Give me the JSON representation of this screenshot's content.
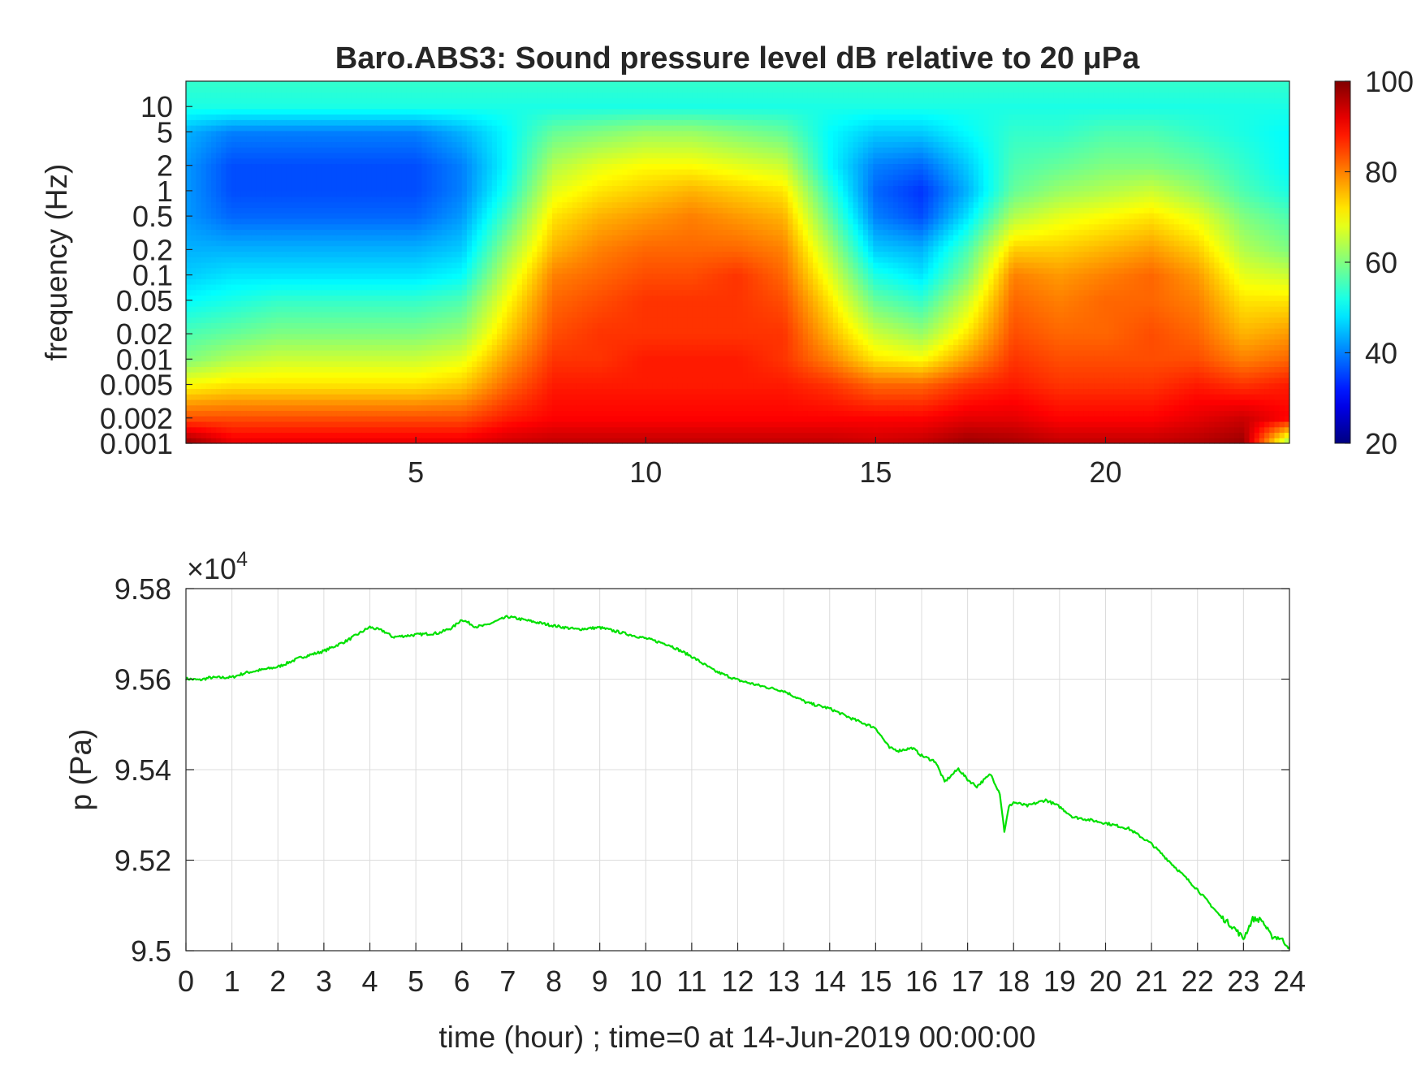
{
  "chart_data": [
    {
      "type": "heatmap",
      "title": "Baro.ABS3: Sound pressure level dB relative to 20 μPa",
      "xlabel": "",
      "ylabel": "frequency (Hz)",
      "x_scale": "linear",
      "y_scale": "log",
      "xlim": [
        0,
        24
      ],
      "ylim": [
        0.001,
        20
      ],
      "x_ticks": [
        5,
        10,
        15,
        20
      ],
      "y_ticks": [
        {
          "value": 10,
          "label": "10"
        },
        {
          "value": 5,
          "label": "5"
        },
        {
          "value": 2,
          "label": "2"
        },
        {
          "value": 1,
          "label": "1"
        },
        {
          "value": 0.5,
          "label": "0.5"
        },
        {
          "value": 0.2,
          "label": "0.2"
        },
        {
          "value": 0.1,
          "label": "0.1"
        },
        {
          "value": 0.05,
          "label": "0.05"
        },
        {
          "value": 0.02,
          "label": "0.02"
        },
        {
          "value": 0.01,
          "label": "0.01"
        },
        {
          "value": 0.005,
          "label": "0.005"
        },
        {
          "value": 0.002,
          "label": "0.002"
        },
        {
          "value": 0.001,
          "label": "0.001"
        }
      ],
      "colormap": "jet",
      "clim": [
        20,
        100
      ],
      "colorbar_ticks": [
        20,
        40,
        60,
        80,
        100
      ],
      "time_hours": [
        0,
        1,
        2,
        3,
        4,
        5,
        6,
        7,
        8,
        9,
        10,
        11,
        12,
        13,
        14,
        15,
        16,
        17,
        18,
        19,
        20,
        21,
        22,
        23,
        24
      ],
      "frequency_hz": [
        0.001,
        0.002,
        0.005,
        0.01,
        0.02,
        0.05,
        0.1,
        0.2,
        0.5,
        1,
        2,
        5,
        10,
        20
      ],
      "spl_db": [
        [
          99,
          84,
          70,
          60,
          56,
          50,
          46,
          44,
          42,
          42,
          42,
          44,
          52,
          54
        ],
        [
          92,
          84,
          72,
          64,
          58,
          52,
          48,
          44,
          38,
          36,
          36,
          40,
          52,
          54
        ],
        [
          92,
          84,
          72,
          66,
          60,
          54,
          48,
          44,
          38,
          36,
          36,
          40,
          52,
          54
        ],
        [
          92,
          84,
          72,
          66,
          60,
          54,
          48,
          44,
          38,
          36,
          36,
          40,
          52,
          54
        ],
        [
          92,
          84,
          72,
          66,
          60,
          54,
          48,
          44,
          38,
          36,
          36,
          40,
          52,
          54
        ],
        [
          92,
          84,
          72,
          66,
          60,
          54,
          48,
          44,
          38,
          36,
          36,
          40,
          52,
          54
        ],
        [
          92,
          84,
          74,
          68,
          62,
          56,
          50,
          46,
          42,
          40,
          40,
          44,
          52,
          54
        ],
        [
          94,
          88,
          82,
          78,
          74,
          70,
          66,
          62,
          56,
          52,
          50,
          50,
          52,
          54
        ],
        [
          95,
          90,
          88,
          86,
          84,
          82,
          80,
          76,
          72,
          68,
          64,
          58,
          52,
          54
        ],
        [
          95,
          90,
          88,
          86,
          86,
          84,
          82,
          80,
          76,
          72,
          68,
          60,
          52,
          54
        ],
        [
          95,
          90,
          88,
          88,
          86,
          86,
          84,
          82,
          78,
          74,
          70,
          62,
          52,
          54
        ],
        [
          95,
          90,
          88,
          88,
          86,
          86,
          84,
          82,
          80,
          76,
          70,
          62,
          52,
          54
        ],
        [
          95,
          90,
          88,
          88,
          86,
          86,
          86,
          82,
          78,
          74,
          68,
          60,
          52,
          54
        ],
        [
          95,
          90,
          88,
          86,
          86,
          84,
          82,
          80,
          76,
          72,
          66,
          58,
          52,
          54
        ],
        [
          95,
          90,
          86,
          80,
          76,
          72,
          68,
          64,
          58,
          54,
          50,
          50,
          52,
          54
        ],
        [
          94,
          90,
          82,
          72,
          66,
          58,
          52,
          46,
          40,
          38,
          40,
          46,
          52,
          54
        ],
        [
          95,
          90,
          82,
          70,
          62,
          54,
          48,
          44,
          36,
          34,
          38,
          46,
          52,
          54
        ],
        [
          98,
          92,
          86,
          78,
          72,
          66,
          60,
          56,
          48,
          44,
          46,
          50,
          52,
          54
        ],
        [
          97,
          92,
          88,
          86,
          84,
          82,
          80,
          74,
          64,
          58,
          56,
          54,
          52,
          54
        ],
        [
          95,
          90,
          86,
          84,
          82,
          80,
          78,
          74,
          68,
          62,
          58,
          54,
          52,
          54
        ],
        [
          95,
          90,
          86,
          84,
          82,
          82,
          80,
          76,
          70,
          64,
          60,
          56,
          52,
          54
        ],
        [
          95,
          90,
          86,
          84,
          84,
          82,
          82,
          78,
          72,
          66,
          60,
          56,
          52,
          54
        ],
        [
          96,
          92,
          88,
          84,
          82,
          80,
          78,
          74,
          68,
          62,
          58,
          54,
          52,
          54
        ],
        [
          98,
          94,
          86,
          80,
          76,
          72,
          68,
          64,
          60,
          56,
          54,
          52,
          52,
          54
        ],
        [
          60,
          90,
          88,
          82,
          78,
          72,
          66,
          60,
          56,
          52,
          50,
          50,
          52,
          54
        ]
      ]
    },
    {
      "type": "line",
      "title": "",
      "xlabel": "time (hour) ; time=0 at 14-Jun-2019 00:00:00",
      "ylabel": "p (Pa)",
      "xlim": [
        0,
        24
      ],
      "ylim": [
        9.5,
        9.58
      ],
      "y_multiplier": "×10",
      "y_multiplier_exponent": "4",
      "x_ticks": [
        0,
        1,
        2,
        3,
        4,
        5,
        6,
        7,
        8,
        9,
        10,
        11,
        12,
        13,
        14,
        15,
        16,
        17,
        18,
        19,
        20,
        21,
        22,
        23,
        24
      ],
      "y_ticks": [
        {
          "value": 9.58,
          "label": "9.58"
        },
        {
          "value": 9.56,
          "label": "9.56"
        },
        {
          "value": 9.54,
          "label": "9.54"
        },
        {
          "value": 9.52,
          "label": "9.52"
        },
        {
          "value": 9.5,
          "label": "9.5"
        }
      ],
      "grid": true,
      "series": [
        {
          "color": "#00e000",
          "x": [
            0,
            0.3,
            0.5,
            1,
            1.3,
            2,
            2.5,
            3,
            3.5,
            4,
            4.3,
            4.5,
            5,
            5.5,
            5.8,
            6,
            6.3,
            6.5,
            7,
            7.5,
            8,
            8.5,
            9,
            9.5,
            10,
            10.5,
            11,
            11.5,
            12,
            12.5,
            13,
            13.5,
            14,
            14.5,
            15,
            15.3,
            15.5,
            15.8,
            16,
            16.3,
            16.5,
            16.8,
            17,
            17.2,
            17.5,
            17.7,
            17.8,
            17.9,
            18,
            18.3,
            18.7,
            19,
            19.3,
            19.5,
            20,
            20.5,
            21,
            21.5,
            22,
            22.5,
            22.8,
            23,
            23.2,
            23.4,
            23.6,
            23.8,
            24
          ],
          "y": [
            9.5601,
            9.5598,
            9.5603,
            9.5604,
            9.5614,
            9.5627,
            9.5648,
            9.5662,
            9.5685,
            9.5715,
            9.5706,
            9.5693,
            9.5698,
            9.5702,
            9.5714,
            9.5732,
            9.5716,
            9.5718,
            9.5738,
            9.5728,
            9.5718,
            9.571,
            9.5714,
            9.5702,
            9.569,
            9.5676,
            9.565,
            9.5618,
            9.5598,
            9.5585,
            9.5574,
            9.5548,
            9.5535,
            9.5512,
            9.5492,
            9.5448,
            9.5442,
            9.5448,
            9.5431,
            9.5418,
            9.5373,
            9.5402,
            9.5378,
            9.5363,
            9.539,
            9.5348,
            9.5264,
            9.5318,
            9.5328,
            9.532,
            9.5333,
            9.5318,
            9.5295,
            9.5292,
            9.5282,
            9.527,
            9.5236,
            9.5186,
            9.5135,
            9.5076,
            9.505,
            9.5027,
            9.507,
            9.5068,
            9.5032,
            9.5028,
            9.5008
          ]
        }
      ]
    }
  ]
}
